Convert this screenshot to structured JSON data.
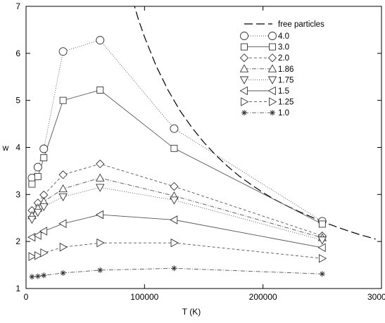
{
  "chart_data": {
    "type": "line",
    "title": "",
    "xlabel": "T (K)",
    "ylabel": "w",
    "xlim": [
      0,
      300000
    ],
    "ylim": [
      1,
      7
    ],
    "xticks": [
      0,
      100000,
      200000,
      300000
    ],
    "xtick_labels": [
      "0",
      "100000",
      "200000",
      "300000"
    ],
    "yticks": [
      1,
      2,
      3,
      4,
      5,
      6,
      7
    ],
    "ytick_labels": [
      "1",
      "2",
      "3",
      "4",
      "5",
      "6",
      "7"
    ],
    "grid": false,
    "legend_position": "top-right",
    "reference_curve": {
      "name": "free particles",
      "style": "long-dash",
      "x": [
        90000,
        95000,
        100000,
        110000,
        120000,
        130000,
        140000,
        150000,
        160000,
        170000,
        180000,
        190000,
        200000,
        210000,
        220000,
        230000,
        240000,
        250000,
        260000,
        270000,
        280000,
        295000
      ],
      "y": [
        7.13,
        6.71,
        6.35,
        5.72,
        5.21,
        4.78,
        4.42,
        4.11,
        3.84,
        3.6,
        3.39,
        3.21,
        3.04,
        2.89,
        2.76,
        2.64,
        2.53,
        2.42,
        2.33,
        2.24,
        2.16,
        2.05
      ]
    },
    "x": [
      5000,
      10000,
      15000,
      31250,
      62500,
      125000,
      250000
    ],
    "series": [
      {
        "name": "4.0",
        "marker": "circle",
        "dash": "1,2",
        "values": [
          3.35,
          3.58,
          3.97,
          6.04,
          6.28,
          4.4,
          2.43
        ]
      },
      {
        "name": "3.0",
        "marker": "square",
        "dash": "",
        "values": [
          3.22,
          3.38,
          3.78,
          5.0,
          5.22,
          3.98,
          2.37
        ]
      },
      {
        "name": "2.0",
        "marker": "diamond",
        "dash": "4,3",
        "values": [
          2.66,
          2.82,
          2.99,
          3.42,
          3.65,
          3.17,
          2.12
        ]
      },
      {
        "name": "1.86",
        "marker": "triangle-up",
        "dash": "6,2,1,2",
        "values": [
          2.55,
          2.71,
          2.85,
          3.12,
          3.35,
          2.97,
          2.08
        ]
      },
      {
        "name": "1.75",
        "marker": "triangle-down",
        "dash": "1,2",
        "values": [
          2.47,
          2.62,
          2.74,
          2.95,
          3.15,
          2.88,
          2.03
        ]
      },
      {
        "name": "1.5",
        "marker": "triangle-left",
        "dash": "",
        "values": [
          2.09,
          2.13,
          2.22,
          2.38,
          2.57,
          2.46,
          1.87
        ]
      },
      {
        "name": "1.25",
        "marker": "triangle-right",
        "dash": "4,3",
        "values": [
          1.68,
          1.7,
          1.76,
          1.88,
          1.97,
          1.97,
          1.64
        ]
      },
      {
        "name": "1.0",
        "marker": "asterisk",
        "dash": "6,2,1,2",
        "values": [
          1.25,
          1.26,
          1.28,
          1.33,
          1.39,
          1.43,
          1.31
        ]
      }
    ]
  }
}
